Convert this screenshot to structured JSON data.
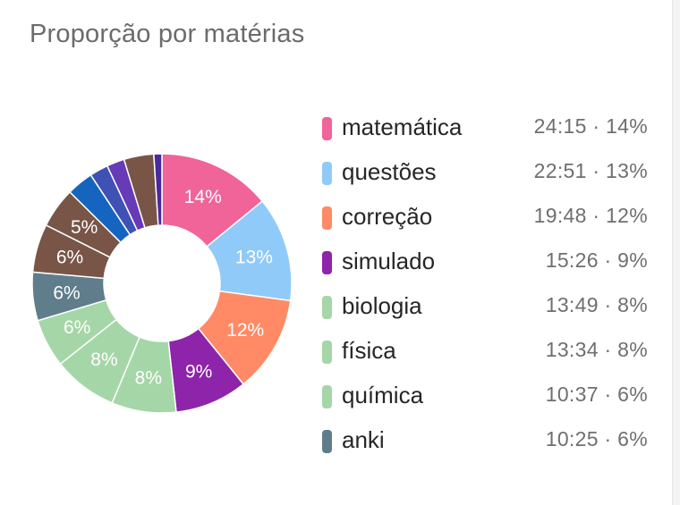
{
  "card": {
    "title": "Proporção por matérias"
  },
  "chart_data": {
    "type": "pie",
    "title": "Proporção por matérias",
    "donut": true,
    "legend_position": "right",
    "slices": [
      {
        "name": "matemática",
        "value": 14,
        "label": "14%",
        "time": "24:15",
        "legend_value": "24:15 · 14%",
        "color": "#f0649a"
      },
      {
        "name": "questões",
        "value": 13,
        "label": "13%",
        "time": "22:51",
        "legend_value": "22:51 · 13%",
        "color": "#90caf9"
      },
      {
        "name": "correção",
        "value": 12,
        "label": "12%",
        "time": "19:48",
        "legend_value": "19:48 · 12%",
        "color": "#ff8a65"
      },
      {
        "name": "simulado",
        "value": 9,
        "label": "9%",
        "time": "15:26",
        "legend_value": "15:26 · 9%",
        "color": "#8e24aa"
      },
      {
        "name": "biologia",
        "value": 8,
        "label": "8%",
        "time": "13:49",
        "legend_value": "13:49 · 8%",
        "color": "#a5d6a7"
      },
      {
        "name": "física",
        "value": 8,
        "label": "8%",
        "time": "13:34",
        "legend_value": "13:34 · 8%",
        "color": "#a5d6a7"
      },
      {
        "name": "química",
        "value": 6,
        "label": "6%",
        "time": "10:37",
        "legend_value": "10:37 · 6%",
        "color": "#a5d6a7"
      },
      {
        "name": "anki",
        "value": 6,
        "label": "6%",
        "time": "10:25",
        "legend_value": "10:25 · 6%",
        "color": "#607d8b"
      },
      {
        "value": 6,
        "label": "6%",
        "color": "#795548"
      },
      {
        "value": 5,
        "label": "5%",
        "color": "#795548"
      },
      {
        "value": 3.3,
        "color": "#1565c0"
      },
      {
        "value": 2.3,
        "color": "#3f51b5"
      },
      {
        "value": 2.2,
        "color": "#673ab7"
      },
      {
        "value": 3.7,
        "color": "#795548"
      },
      {
        "value": 1.0,
        "color": "#4a2a9a"
      }
    ]
  }
}
